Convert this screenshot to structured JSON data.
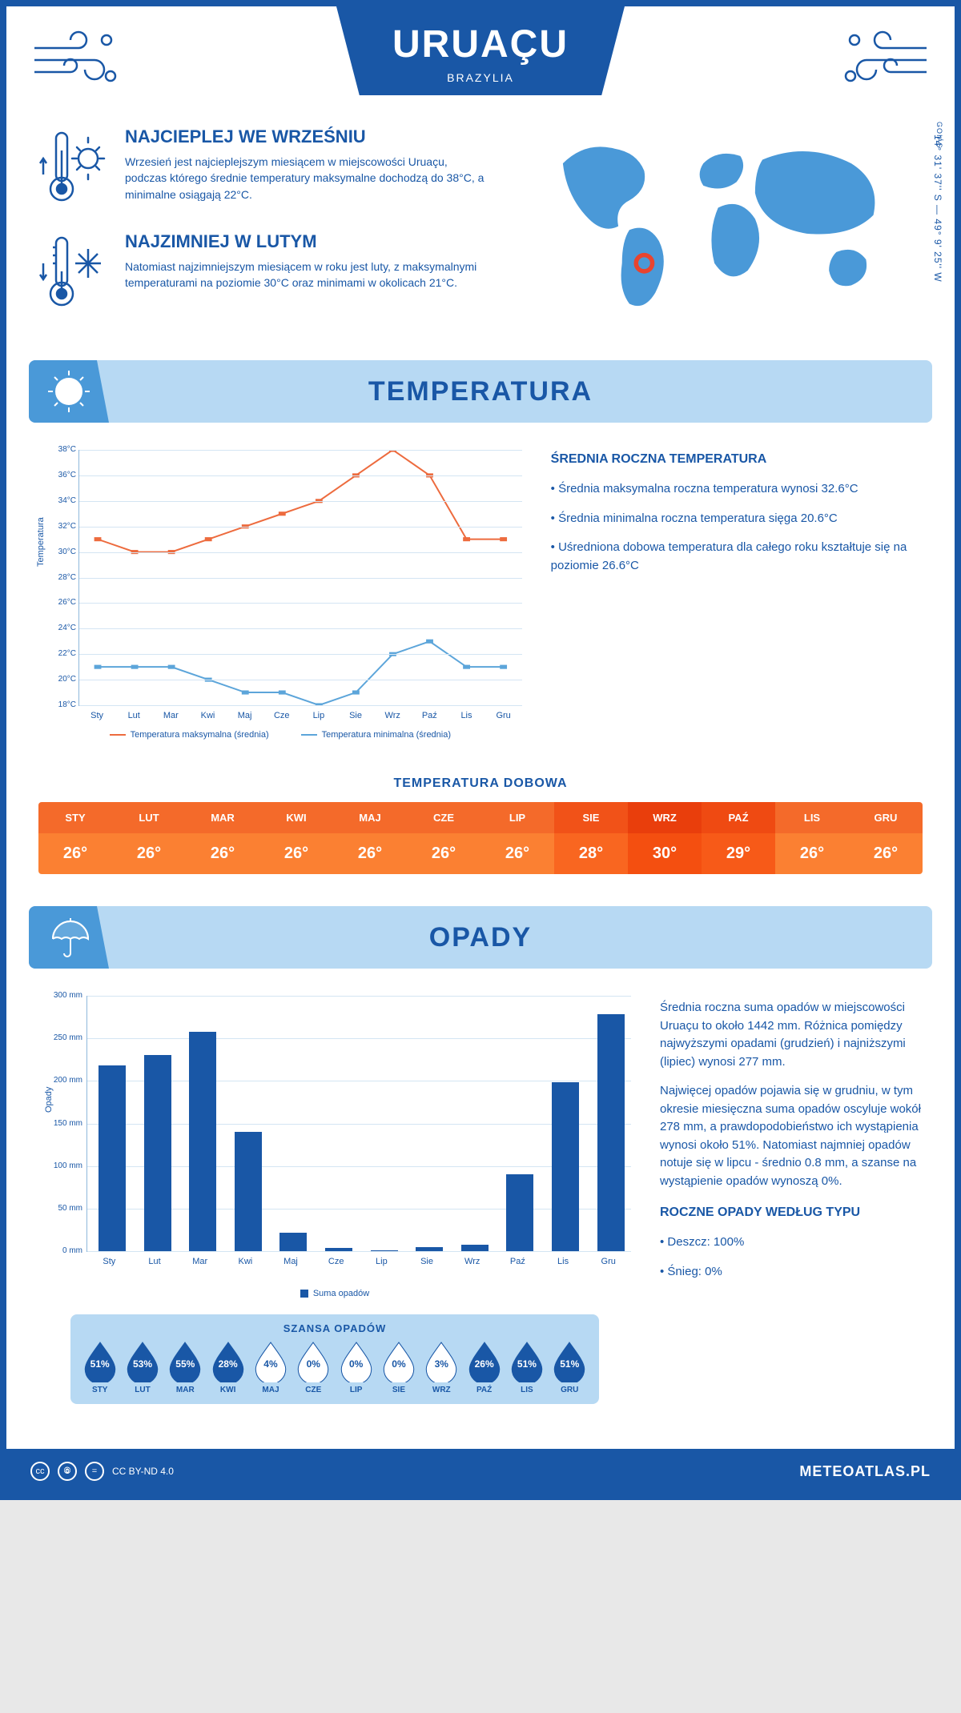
{
  "header": {
    "title": "URUAÇU",
    "subtitle": "BRAZYLIA",
    "region": "GOIÁS",
    "coords": "14° 31' 37'' S — 49° 9' 25'' W"
  },
  "facts": {
    "hot": {
      "title": "NAJCIEPLEJ WE WRZEŚNIU",
      "text": "Wrzesień jest najcieplejszym miesiącem w miejscowości Uruaçu, podczas którego średnie temperatury maksymalne dochodzą do 38°C, a minimalne osiągają 22°C."
    },
    "cold": {
      "title": "NAJZIMNIEJ W LUTYM",
      "text": "Natomiast najzimniejszym miesiącem w roku jest luty, z maksymalnymi temperaturami na poziomie 30°C oraz minimami w okolicach 21°C."
    }
  },
  "months": [
    "Sty",
    "Lut",
    "Mar",
    "Kwi",
    "Maj",
    "Cze",
    "Lip",
    "Sie",
    "Wrz",
    "Paź",
    "Lis",
    "Gru"
  ],
  "months_upper": [
    "STY",
    "LUT",
    "MAR",
    "KWI",
    "MAJ",
    "CZE",
    "LIP",
    "SIE",
    "WRZ",
    "PAŹ",
    "LIS",
    "GRU"
  ],
  "temperature_section": {
    "title": "TEMPERATURA",
    "chart": {
      "type": "line",
      "y_label": "Temperatura",
      "ylim": [
        18,
        38
      ],
      "ytick_step": 2,
      "ytick_suffix": "°C",
      "grid_color": "#d4e5f3",
      "axis_color": "#8fb8db",
      "series": [
        {
          "name": "Temperatura maksymalna (średnia)",
          "color": "#ed6b3e",
          "values": [
            31,
            30,
            30,
            31,
            32,
            33,
            34,
            36,
            38,
            36,
            31,
            31
          ]
        },
        {
          "name": "Temperatura minimalna (średnia)",
          "color": "#5ca5da",
          "values": [
            21,
            21,
            21,
            20,
            19,
            19,
            18,
            19,
            22,
            23,
            21,
            21
          ]
        }
      ]
    },
    "stats": {
      "title": "ŚREDNIA ROCZNA TEMPERATURA",
      "items": [
        "• Średnia maksymalna roczna temperatura wynosi 32.6°C",
        "• Średnia minimalna roczna temperatura sięga 20.6°C",
        "• Uśredniona dobowa temperatura dla całego roku kształtuje się na poziomie 26.6°C"
      ]
    },
    "daily": {
      "title": "TEMPERATURA DOBOWA",
      "values": [
        "26°",
        "26°",
        "26°",
        "26°",
        "26°",
        "26°",
        "26°",
        "28°",
        "30°",
        "29°",
        "26°",
        "26°"
      ],
      "header_colors": [
        "#f46a2a",
        "#f46a2a",
        "#f46a2a",
        "#f46a2a",
        "#f46a2a",
        "#f46a2a",
        "#f46a2a",
        "#f15218",
        "#e93e0c",
        "#ef4a12",
        "#f46a2a",
        "#f46a2a"
      ],
      "cell_colors": [
        "#fb8032",
        "#fb8032",
        "#fb8032",
        "#fb8032",
        "#fb8032",
        "#fb8032",
        "#fb8032",
        "#f96620",
        "#f44f10",
        "#f75a18",
        "#fb8032",
        "#fb8032"
      ]
    }
  },
  "precip_section": {
    "title": "OPADY",
    "chart": {
      "type": "bar",
      "y_label": "Opady",
      "ylim": [
        0,
        300
      ],
      "ytick_step": 50,
      "ytick_suffix": " mm",
      "bar_color": "#1957a6",
      "grid_color": "#d4e5f3",
      "values": [
        218,
        230,
        258,
        140,
        22,
        4,
        1,
        5,
        8,
        90,
        198,
        278
      ],
      "legend": "Suma opadów"
    },
    "text1": "Średnia roczna suma opadów w miejscowości Uruaçu to około 1442 mm. Różnica pomiędzy najwyższymi opadami (grudzień) i najniższymi (lipiec) wynosi 277 mm.",
    "text2": "Najwięcej opadów pojawia się w grudniu, w tym okresie miesięczna suma opadów oscyluje wokół 278 mm, a prawdopodobieństwo ich wystąpienia wynosi około 51%. Natomiast najmniej opadów notuje się w lipcu - średnio 0.8 mm, a szanse na wystąpienie opadów wynoszą 0%.",
    "chance": {
      "title": "SZANSA OPADÓW",
      "values": [
        51,
        53,
        55,
        28,
        4,
        0,
        0,
        0,
        3,
        26,
        51,
        51
      ],
      "full_color": "#1957a6",
      "empty_color": "#ffffff",
      "text_on_full": "#ffffff",
      "text_on_empty": "#1957a6",
      "threshold": 15
    },
    "types": {
      "title": "ROCZNE OPADY WEDŁUG TYPU",
      "items": [
        "• Deszcz: 100%",
        "• Śnieg: 0%"
      ]
    }
  },
  "footer": {
    "license": "CC BY-ND 4.0",
    "site": "METEOATLAS.PL"
  },
  "colors": {
    "primary": "#1957a6",
    "light_blue": "#b7d9f3",
    "mid_blue": "#4a99d8",
    "map_fill": "#4a99d8",
    "marker": "#e8442f"
  }
}
